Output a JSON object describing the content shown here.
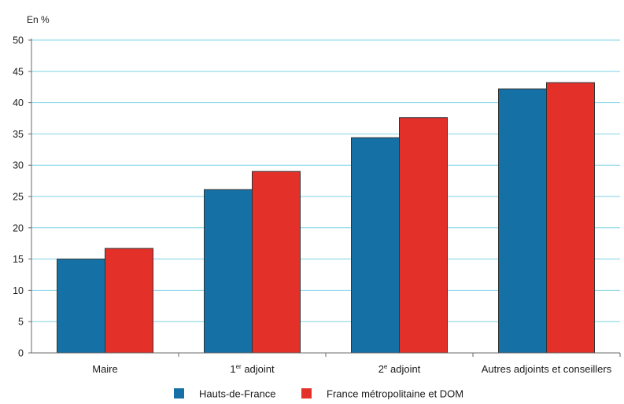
{
  "chart_data": {
    "type": "bar",
    "unit_label": "En %",
    "categories": [
      {
        "main": "Maire",
        "sup": "",
        "rest": ""
      },
      {
        "main": "1",
        "sup": "er",
        "rest": " adjoint"
      },
      {
        "main": "2",
        "sup": "e",
        "rest": " adjoint"
      },
      {
        "main": "Autres adjoints et conseillers",
        "sup": "",
        "rest": ""
      }
    ],
    "series": [
      {
        "name": "Hauts-de-France",
        "color": "#1570a6",
        "values": [
          15.0,
          26.1,
          34.4,
          42.2
        ]
      },
      {
        "name": "France métropolitaine et DOM",
        "color": "#e3312a",
        "values": [
          16.7,
          29.0,
          37.6,
          43.2
        ]
      }
    ],
    "ylim": [
      0,
      50
    ],
    "yticks": [
      0,
      5,
      10,
      15,
      20,
      25,
      30,
      35,
      40,
      45,
      50
    ],
    "grid": true,
    "grid_color": "#7fd3e6",
    "legend_position": "bottom"
  }
}
